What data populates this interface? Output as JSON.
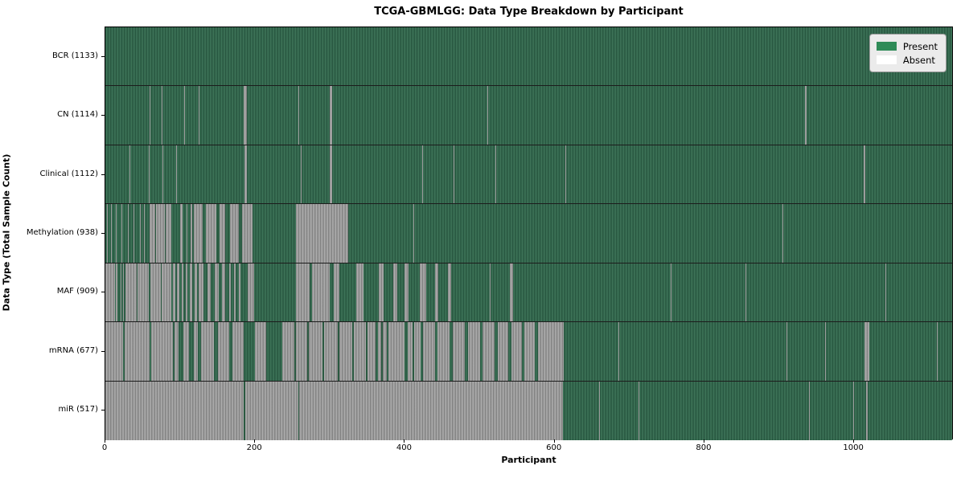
{
  "chart_data": {
    "type": "heatmap",
    "title": "TCGA-GBMLGG: Data Type Breakdown by Participant",
    "xlabel": "Participant",
    "ylabel": "Data Type (Total Sample Count)",
    "x_ticks": [
      0,
      200,
      400,
      600,
      800,
      1000
    ],
    "x_max": 1133,
    "grid": false,
    "legend_position": "upper right",
    "legend_entries": [
      {
        "label": "Present",
        "color": "#2e8b57"
      },
      {
        "label": "Absent",
        "color": "#ffffff"
      }
    ],
    "states": {
      "present_color": "#2e8b57",
      "absent_color": "#ffffff",
      "edge_color": "#1c1c1c"
    },
    "rows": [
      {
        "label": "BCR (1133)",
        "name": "BCR",
        "total_samples": 1133,
        "absent": [],
        "present_overrides": []
      },
      {
        "label": "CN (1114)",
        "name": "CN",
        "total_samples": 1114,
        "absent": [
          [
            59,
            60
          ],
          [
            75,
            76
          ],
          [
            105,
            106
          ],
          [
            125,
            126
          ],
          [
            185,
            189
          ],
          [
            258,
            259
          ],
          [
            300,
            303
          ],
          [
            510,
            511
          ],
          [
            934,
            936
          ]
        ],
        "present_overrides": []
      },
      {
        "label": "Clinical (1112)",
        "name": "Clinical",
        "total_samples": 1112,
        "absent": [
          [
            32,
            33
          ],
          [
            58,
            59
          ],
          [
            76,
            77
          ],
          [
            94,
            95
          ],
          [
            186,
            189
          ],
          [
            261,
            262
          ],
          [
            300,
            303
          ],
          [
            423,
            424
          ],
          [
            465,
            466
          ],
          [
            521,
            522
          ],
          [
            614,
            615
          ],
          [
            1013,
            1015
          ]
        ],
        "present_overrides": []
      },
      {
        "label": "Methylation (938)",
        "name": "Methylation",
        "total_samples": 938,
        "absent": [
          [
            2,
            3
          ],
          [
            8,
            9
          ],
          [
            14,
            15
          ],
          [
            22,
            23
          ],
          [
            30,
            31
          ],
          [
            38,
            39
          ],
          [
            46,
            47
          ],
          [
            52,
            53
          ],
          [
            59,
            88
          ],
          [
            100,
            103
          ],
          [
            108,
            110
          ],
          [
            114,
            116
          ],
          [
            118,
            130
          ],
          [
            134,
            148
          ],
          [
            152,
            160
          ],
          [
            166,
            178
          ],
          [
            183,
            197
          ],
          [
            254,
            324
          ],
          [
            411,
            412
          ],
          [
            904,
            905
          ]
        ],
        "present_overrides": [
          [
            67,
            68
          ],
          [
            80,
            81
          ],
          [
            149,
            151
          ],
          [
            163,
            165
          ],
          [
            180,
            182
          ]
        ]
      },
      {
        "label": "MAF (909)",
        "name": "MAF",
        "total_samples": 909,
        "absent": [
          [
            0,
            13
          ],
          [
            14,
            16
          ],
          [
            20,
            21
          ],
          [
            24,
            25
          ],
          [
            27,
            58
          ],
          [
            60,
            88
          ],
          [
            90,
            93
          ],
          [
            96,
            99
          ],
          [
            102,
            104
          ],
          [
            107,
            110
          ],
          [
            113,
            116
          ],
          [
            119,
            122
          ],
          [
            125,
            131
          ],
          [
            136,
            141
          ],
          [
            146,
            151
          ],
          [
            156,
            160
          ],
          [
            165,
            167
          ],
          [
            172,
            174
          ],
          [
            178,
            180
          ],
          [
            190,
            199
          ],
          [
            254,
            273
          ],
          [
            276,
            300
          ],
          [
            305,
            312
          ],
          [
            335,
            345
          ],
          [
            365,
            372
          ],
          [
            385,
            390
          ],
          [
            400,
            405
          ],
          [
            420,
            428
          ],
          [
            440,
            445
          ],
          [
            458,
            462
          ],
          [
            513,
            514
          ],
          [
            540,
            545
          ],
          [
            755,
            756
          ],
          [
            855,
            856
          ],
          [
            1042,
            1043
          ]
        ],
        "present_overrides": [
          [
            42,
            43
          ],
          [
            74,
            75
          ]
        ]
      },
      {
        "label": "mRNA (677)",
        "name": "mRNA",
        "total_samples": 677,
        "absent": [
          [
            0,
            24
          ],
          [
            26,
            59
          ],
          [
            61,
            90
          ],
          [
            92,
            98
          ],
          [
            104,
            112
          ],
          [
            118,
            124
          ],
          [
            128,
            145
          ],
          [
            150,
            165
          ],
          [
            170,
            185
          ],
          [
            200,
            215
          ],
          [
            236,
            361
          ],
          [
            364,
            376
          ],
          [
            378,
            400
          ],
          [
            404,
            421
          ],
          [
            424,
            612
          ],
          [
            685,
            686
          ],
          [
            910,
            911
          ],
          [
            961,
            962
          ],
          [
            1014,
            1020
          ],
          [
            1110,
            1111
          ]
        ],
        "present_overrides": [
          [
            252,
            254
          ],
          [
            270,
            272
          ],
          [
            290,
            292
          ],
          [
            310,
            312
          ],
          [
            330,
            332
          ],
          [
            348,
            350
          ],
          [
            368,
            370
          ],
          [
            410,
            412
          ],
          [
            440,
            444
          ],
          [
            460,
            464
          ],
          [
            480,
            484
          ],
          [
            500,
            504
          ],
          [
            520,
            524
          ],
          [
            538,
            542
          ],
          [
            556,
            560
          ],
          [
            574,
            578
          ]
        ]
      },
      {
        "label": "miR (517)",
        "name": "miR",
        "total_samples": 517,
        "absent": [
          [
            0,
            611
          ],
          [
            659,
            660
          ],
          [
            712,
            713
          ],
          [
            940,
            941
          ],
          [
            999,
            1000
          ],
          [
            1016,
            1018
          ]
        ],
        "present_overrides": [
          [
            185,
            187
          ],
          [
            258,
            259
          ]
        ]
      }
    ]
  }
}
